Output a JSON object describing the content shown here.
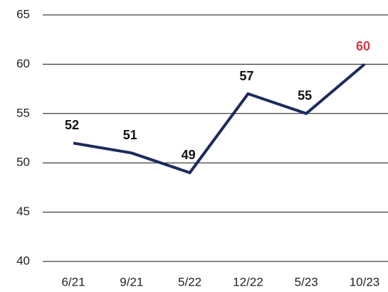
{
  "chart_data": {
    "type": "line",
    "categories": [
      "6/21",
      "9/21",
      "5/22",
      "12/22",
      "5/23",
      "10/23"
    ],
    "values": [
      52,
      51,
      49,
      57,
      55,
      60
    ],
    "color": "#1c2b5c",
    "value_label_colors": [
      "#111111",
      "#111111",
      "#111111",
      "#111111",
      "#111111",
      "#d23a40"
    ],
    "ylim": [
      40,
      65
    ],
    "yticks": [
      40,
      45,
      50,
      55,
      60,
      65
    ],
    "grid": true
  }
}
